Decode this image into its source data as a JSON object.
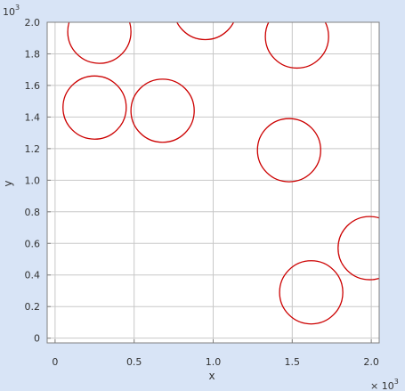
{
  "chart_data": {
    "type": "scatter",
    "marker": "circle",
    "xlabel": "x",
    "ylabel": "y",
    "xlim": [
      -0.05,
      2.05
    ],
    "ylim": [
      -0.03,
      2.0
    ],
    "x_exponent": "3",
    "y_exponent": "3",
    "x_ticks": [
      0,
      0.5,
      1.0,
      1.5,
      2.0
    ],
    "x_tick_labels": [
      "0",
      "0.5",
      "1.0",
      "1.5",
      "2.0"
    ],
    "y_ticks": [
      0,
      0.2,
      0.4,
      0.6,
      0.8,
      1.0,
      1.2,
      1.4,
      1.6,
      1.8,
      2.0
    ],
    "y_tick_labels": [
      "0",
      "0.2",
      "0.4",
      "0.6",
      "0.8",
      "1.0",
      "1.2",
      "1.4",
      "1.6",
      "1.8",
      "2.0"
    ],
    "grid": true,
    "colors": {
      "marker": "#cc0000",
      "background": "#d8e4f6",
      "plot_area": "#ffffff",
      "grid": "#c8c8c8"
    },
    "circle_radius": 0.2,
    "points": [
      {
        "x": 0.28,
        "y": 1.94
      },
      {
        "x": 0.95,
        "y": 2.09
      },
      {
        "x": 1.53,
        "y": 1.91
      },
      {
        "x": 0.25,
        "y": 1.46
      },
      {
        "x": 0.68,
        "y": 1.44
      },
      {
        "x": 1.48,
        "y": 1.19
      },
      {
        "x": 1.99,
        "y": 0.57
      },
      {
        "x": 1.62,
        "y": 0.29
      }
    ]
  }
}
